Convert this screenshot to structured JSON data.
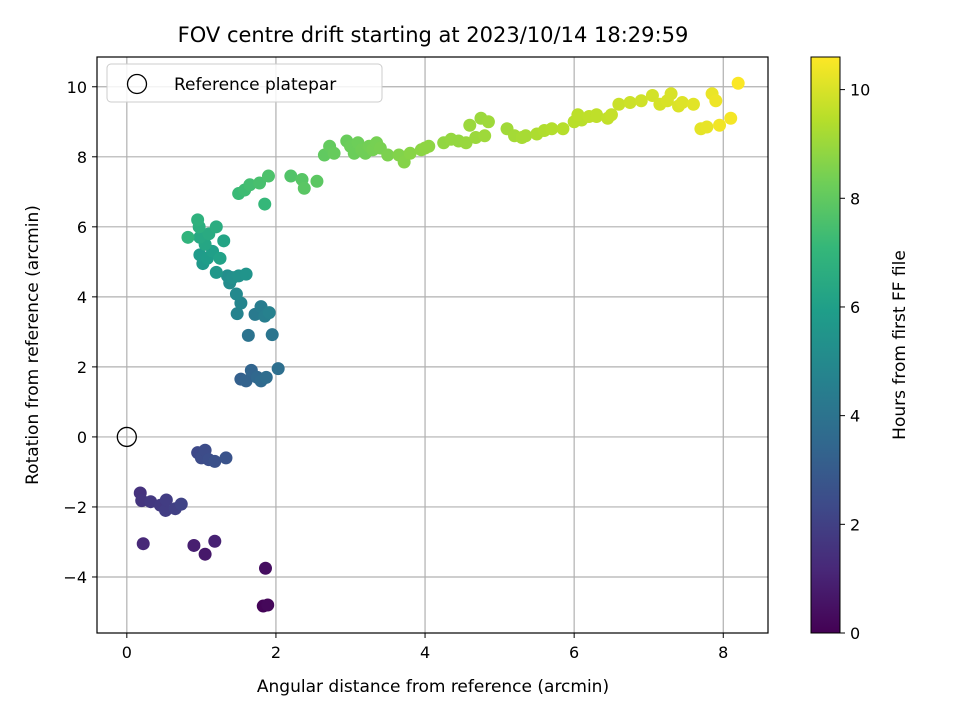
{
  "chart_data": {
    "type": "scatter",
    "title": "FOV centre drift starting at 2023/10/14 18:29:59",
    "xlabel": "Angular distance from reference (arcmin)",
    "ylabel": "Rotation from reference (arcmin)",
    "xlim": [
      -0.4,
      8.6
    ],
    "ylim": [
      -5.6,
      10.85
    ],
    "xticks": [
      0,
      2,
      4,
      6,
      8
    ],
    "yticks": [
      -4,
      -2,
      0,
      2,
      4,
      6,
      8,
      10
    ],
    "xtick_labels": [
      "0",
      "2",
      "4",
      "6",
      "8"
    ],
    "ytick_labels": [
      "−4",
      "−2",
      "0",
      "2",
      "4",
      "6",
      "8",
      "10"
    ],
    "grid": true,
    "legend": {
      "placement": "top-left",
      "entries": [
        "Reference platepar"
      ]
    },
    "reference_point": {
      "x": 0,
      "y": 0,
      "label": "Reference platepar"
    },
    "colorbar": {
      "label": "Hours from first FF file",
      "colormap": "viridis",
      "range": [
        0,
        10.6
      ],
      "ticks": [
        0,
        2,
        4,
        6,
        8,
        10
      ],
      "tick_labels": [
        "0",
        "2",
        "4",
        "6",
        "8",
        "10"
      ]
    },
    "points_order": [
      "x",
      "y",
      "hours"
    ],
    "points": [
      [
        1.83,
        -4.83,
        0.1
      ],
      [
        1.89,
        -4.8,
        0.2
      ],
      [
        1.86,
        -3.75,
        0.4
      ],
      [
        1.05,
        -3.35,
        0.7
      ],
      [
        0.9,
        -3.1,
        0.9
      ],
      [
        1.18,
        -2.98,
        1.0
      ],
      [
        0.22,
        -3.05,
        1.2
      ],
      [
        0.18,
        -1.6,
        1.5
      ],
      [
        0.2,
        -1.82,
        1.6
      ],
      [
        0.32,
        -1.85,
        1.7
      ],
      [
        0.45,
        -1.95,
        1.8
      ],
      [
        0.52,
        -2.1,
        1.9
      ],
      [
        0.53,
        -1.8,
        1.9
      ],
      [
        0.65,
        -2.05,
        2.0
      ],
      [
        0.73,
        -1.92,
        2.1
      ],
      [
        0.95,
        -0.45,
        2.3
      ],
      [
        1.0,
        -0.6,
        2.4
      ],
      [
        1.05,
        -0.38,
        2.4
      ],
      [
        1.1,
        -0.65,
        2.5
      ],
      [
        1.18,
        -0.7,
        2.6
      ],
      [
        1.33,
        -0.6,
        2.7
      ],
      [
        1.53,
        1.65,
        3.2
      ],
      [
        1.6,
        1.6,
        3.3
      ],
      [
        1.67,
        1.9,
        3.4
      ],
      [
        1.75,
        1.7,
        3.5
      ],
      [
        1.8,
        1.6,
        3.6
      ],
      [
        1.87,
        1.7,
        3.7
      ],
      [
        2.03,
        1.95,
        3.8
      ],
      [
        1.63,
        2.9,
        4.0
      ],
      [
        1.95,
        2.92,
        4.1
      ],
      [
        1.72,
        3.5,
        4.3
      ],
      [
        1.8,
        3.72,
        4.4
      ],
      [
        1.85,
        3.45,
        4.5
      ],
      [
        1.91,
        3.55,
        4.6
      ],
      [
        1.48,
        3.52,
        4.7
      ],
      [
        1.53,
        3.82,
        4.8
      ],
      [
        1.47,
        4.08,
        5.0
      ],
      [
        1.38,
        4.4,
        5.1
      ],
      [
        1.35,
        4.6,
        5.2
      ],
      [
        1.42,
        4.55,
        5.3
      ],
      [
        1.5,
        4.6,
        5.4
      ],
      [
        1.6,
        4.65,
        5.5
      ],
      [
        1.2,
        4.7,
        5.6
      ],
      [
        1.02,
        4.95,
        5.7
      ],
      [
        0.98,
        5.2,
        5.8
      ],
      [
        1.08,
        5.1,
        5.9
      ],
      [
        1.15,
        5.3,
        6.0
      ],
      [
        1.25,
        5.1,
        6.1
      ],
      [
        1.3,
        5.6,
        6.2
      ],
      [
        1.05,
        5.5,
        6.3
      ],
      [
        0.98,
        5.7,
        6.4
      ],
      [
        1.1,
        5.8,
        6.5
      ],
      [
        1.2,
        6.0,
        6.6
      ],
      [
        0.97,
        6.0,
        6.7
      ],
      [
        0.95,
        6.2,
        6.8
      ],
      [
        0.82,
        5.7,
        6.9
      ],
      [
        1.85,
        6.65,
        7.1
      ],
      [
        1.5,
        6.95,
        7.2
      ],
      [
        1.58,
        7.05,
        7.3
      ],
      [
        1.65,
        7.2,
        7.4
      ],
      [
        1.78,
        7.25,
        7.5
      ],
      [
        1.9,
        7.45,
        7.6
      ],
      [
        2.2,
        7.45,
        7.7
      ],
      [
        2.35,
        7.35,
        7.8
      ],
      [
        2.38,
        7.1,
        7.85
      ],
      [
        2.55,
        7.3,
        7.9
      ],
      [
        2.65,
        8.05,
        8.0
      ],
      [
        2.72,
        8.3,
        8.05
      ],
      [
        2.78,
        8.1,
        8.1
      ],
      [
        2.95,
        8.45,
        8.15
      ],
      [
        3.0,
        8.3,
        8.2
      ],
      [
        3.05,
        8.1,
        8.2
      ],
      [
        3.1,
        8.4,
        8.25
      ],
      [
        3.15,
        8.2,
        8.3
      ],
      [
        3.2,
        8.1,
        8.3
      ],
      [
        3.25,
        8.3,
        8.35
      ],
      [
        3.3,
        8.2,
        8.4
      ],
      [
        3.35,
        8.4,
        8.4
      ],
      [
        3.4,
        8.25,
        8.45
      ],
      [
        3.65,
        8.05,
        8.6
      ],
      [
        3.72,
        7.85,
        8.65
      ],
      [
        3.8,
        8.1,
        8.7
      ],
      [
        3.95,
        8.2,
        8.75
      ],
      [
        4.05,
        8.3,
        8.8
      ],
      [
        4.25,
        8.4,
        8.85
      ],
      [
        4.35,
        8.5,
        8.9
      ],
      [
        4.45,
        8.45,
        8.9
      ],
      [
        4.55,
        8.4,
        8.95
      ],
      [
        4.6,
        8.9,
        9.0
      ],
      [
        4.75,
        9.1,
        9.0
      ],
      [
        4.8,
        8.6,
        9.05
      ],
      [
        4.85,
        9.0,
        9.05
      ],
      [
        5.1,
        8.8,
        9.1
      ],
      [
        5.2,
        8.6,
        9.15
      ],
      [
        5.3,
        8.55,
        9.2
      ],
      [
        5.5,
        8.65,
        9.3
      ],
      [
        5.6,
        8.75,
        9.35
      ],
      [
        5.7,
        8.8,
        9.4
      ],
      [
        5.85,
        8.8,
        9.45
      ],
      [
        6.0,
        9.0,
        9.5
      ],
      [
        6.05,
        9.2,
        9.55
      ],
      [
        6.2,
        9.15,
        9.6
      ],
      [
        6.3,
        9.2,
        9.6
      ],
      [
        6.45,
        9.1,
        9.65
      ],
      [
        6.5,
        9.2,
        9.7
      ],
      [
        6.6,
        9.5,
        9.75
      ],
      [
        6.75,
        9.55,
        9.8
      ],
      [
        6.9,
        9.6,
        9.85
      ],
      [
        7.05,
        9.75,
        9.9
      ],
      [
        7.15,
        9.5,
        9.95
      ],
      [
        7.25,
        9.6,
        10.0
      ],
      [
        7.3,
        9.8,
        10.0
      ],
      [
        7.4,
        9.45,
        10.05
      ],
      [
        7.45,
        9.55,
        10.1
      ],
      [
        7.6,
        9.5,
        10.15
      ],
      [
        7.7,
        8.8,
        10.2
      ],
      [
        7.78,
        8.85,
        10.25
      ],
      [
        7.85,
        9.8,
        10.3
      ],
      [
        7.9,
        9.6,
        10.35
      ],
      [
        7.95,
        8.9,
        10.4
      ],
      [
        8.1,
        9.1,
        10.45
      ],
      [
        8.2,
        10.1,
        10.55
      ],
      [
        6.3,
        9.15,
        9.6
      ],
      [
        6.1,
        9.05,
        9.5
      ],
      [
        5.35,
        8.6,
        9.2
      ],
      [
        4.68,
        8.55,
        9.0
      ],
      [
        4.0,
        8.25,
        8.8
      ],
      [
        3.5,
        8.05,
        8.5
      ]
    ]
  }
}
